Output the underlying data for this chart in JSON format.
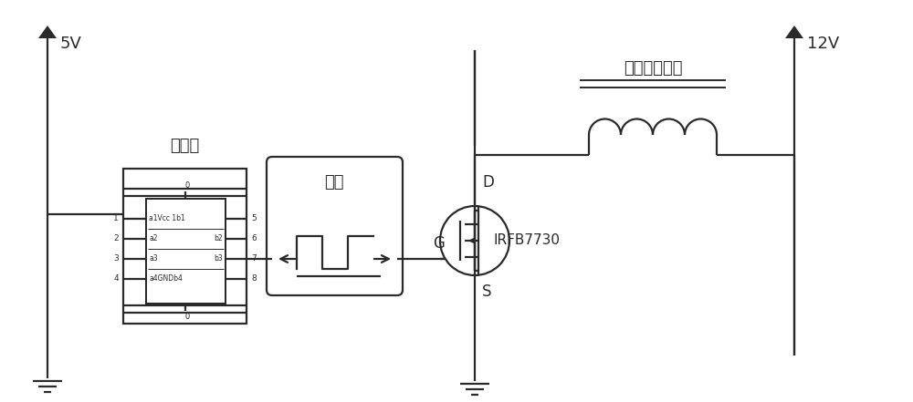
{
  "bg_color": "#ffffff",
  "line_color": "#2a2a2a",
  "lw": 1.6,
  "figsize": [
    10.0,
    4.41
  ],
  "dpi": 100,
  "label_5v": "5V",
  "label_12v": "12V",
  "label_mcu": "单片机",
  "label_square": "方波",
  "label_coil": "通断电流线圈",
  "label_mosfet": "IRFB7730",
  "label_D": "D",
  "label_G": "G",
  "label_S": "S"
}
